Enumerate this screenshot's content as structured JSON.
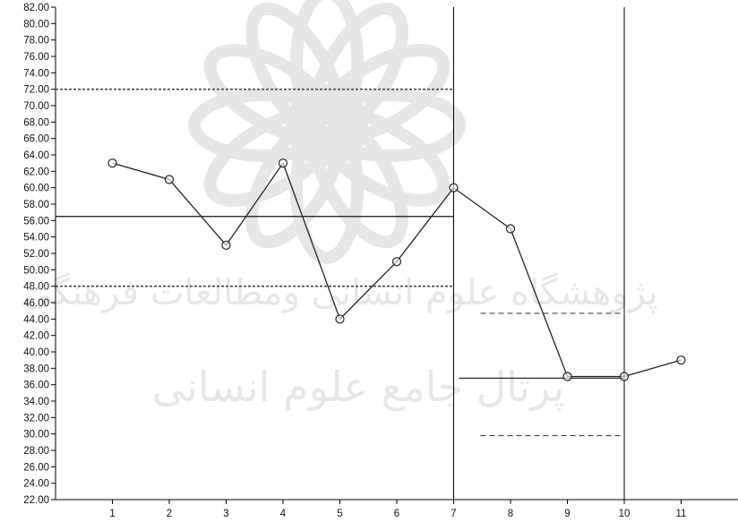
{
  "chart_data": {
    "type": "line",
    "title": "",
    "xlabel": "",
    "ylabel": "",
    "x": [
      1,
      2,
      3,
      4,
      5,
      6,
      7,
      8,
      9,
      10,
      11
    ],
    "x_ticks": [
      "1",
      "2",
      "3",
      "4",
      "5",
      "6",
      "7",
      "8",
      "9",
      "10",
      "11"
    ],
    "xlim": [
      0,
      12
    ],
    "ylim": [
      22,
      82
    ],
    "y_ticks": [
      "22.00",
      "24.00",
      "26.00",
      "28.00",
      "30.00",
      "32.00",
      "34.00",
      "36.00",
      "38.00",
      "40.00",
      "42.00",
      "44.00",
      "46.00",
      "48.00",
      "50.00",
      "52.00",
      "54.00",
      "56.00",
      "58.00",
      "60.00",
      "62.00",
      "64.00",
      "66.00",
      "68.00",
      "70.00",
      "72.00",
      "74.00",
      "76.00",
      "78.00",
      "80.00",
      "82.00"
    ],
    "series": [
      {
        "x": [
          1,
          2,
          3,
          4,
          5,
          6,
          7,
          8,
          9,
          10,
          11
        ],
        "values": [
          63,
          61,
          53,
          63,
          44,
          51,
          60,
          55,
          37,
          37,
          39
        ],
        "marker": "open-circle",
        "color": "#222222"
      }
    ],
    "phase_boundaries": [
      7,
      10
    ],
    "reference_lines": [
      {
        "kind": "mean",
        "style": "solid",
        "y": 56.5,
        "x_range": [
          0,
          7
        ]
      },
      {
        "kind": "upper-limit",
        "style": "dotted",
        "y": 72,
        "x_range": [
          0,
          7
        ]
      },
      {
        "kind": "lower-limit",
        "style": "dotted",
        "y": 48,
        "x_range": [
          0,
          7
        ]
      },
      {
        "kind": "mean",
        "style": "solid",
        "y": 36.8,
        "x_range": [
          7,
          10
        ]
      },
      {
        "kind": "upper-limit",
        "style": "dashed",
        "y": 44.7,
        "x_range": [
          7,
          10
        ]
      },
      {
        "kind": "lower-limit",
        "style": "dashed",
        "y": 29.8,
        "x_range": [
          7,
          10
        ]
      }
    ],
    "grid": false,
    "legend": "none"
  },
  "watermark": {
    "lines": [
      "پژوهشگاه علوم انسانی ومطالعات فرهنگی",
      "پرتال جامع علوم انسانی"
    ],
    "color": "#e6e6e6"
  }
}
